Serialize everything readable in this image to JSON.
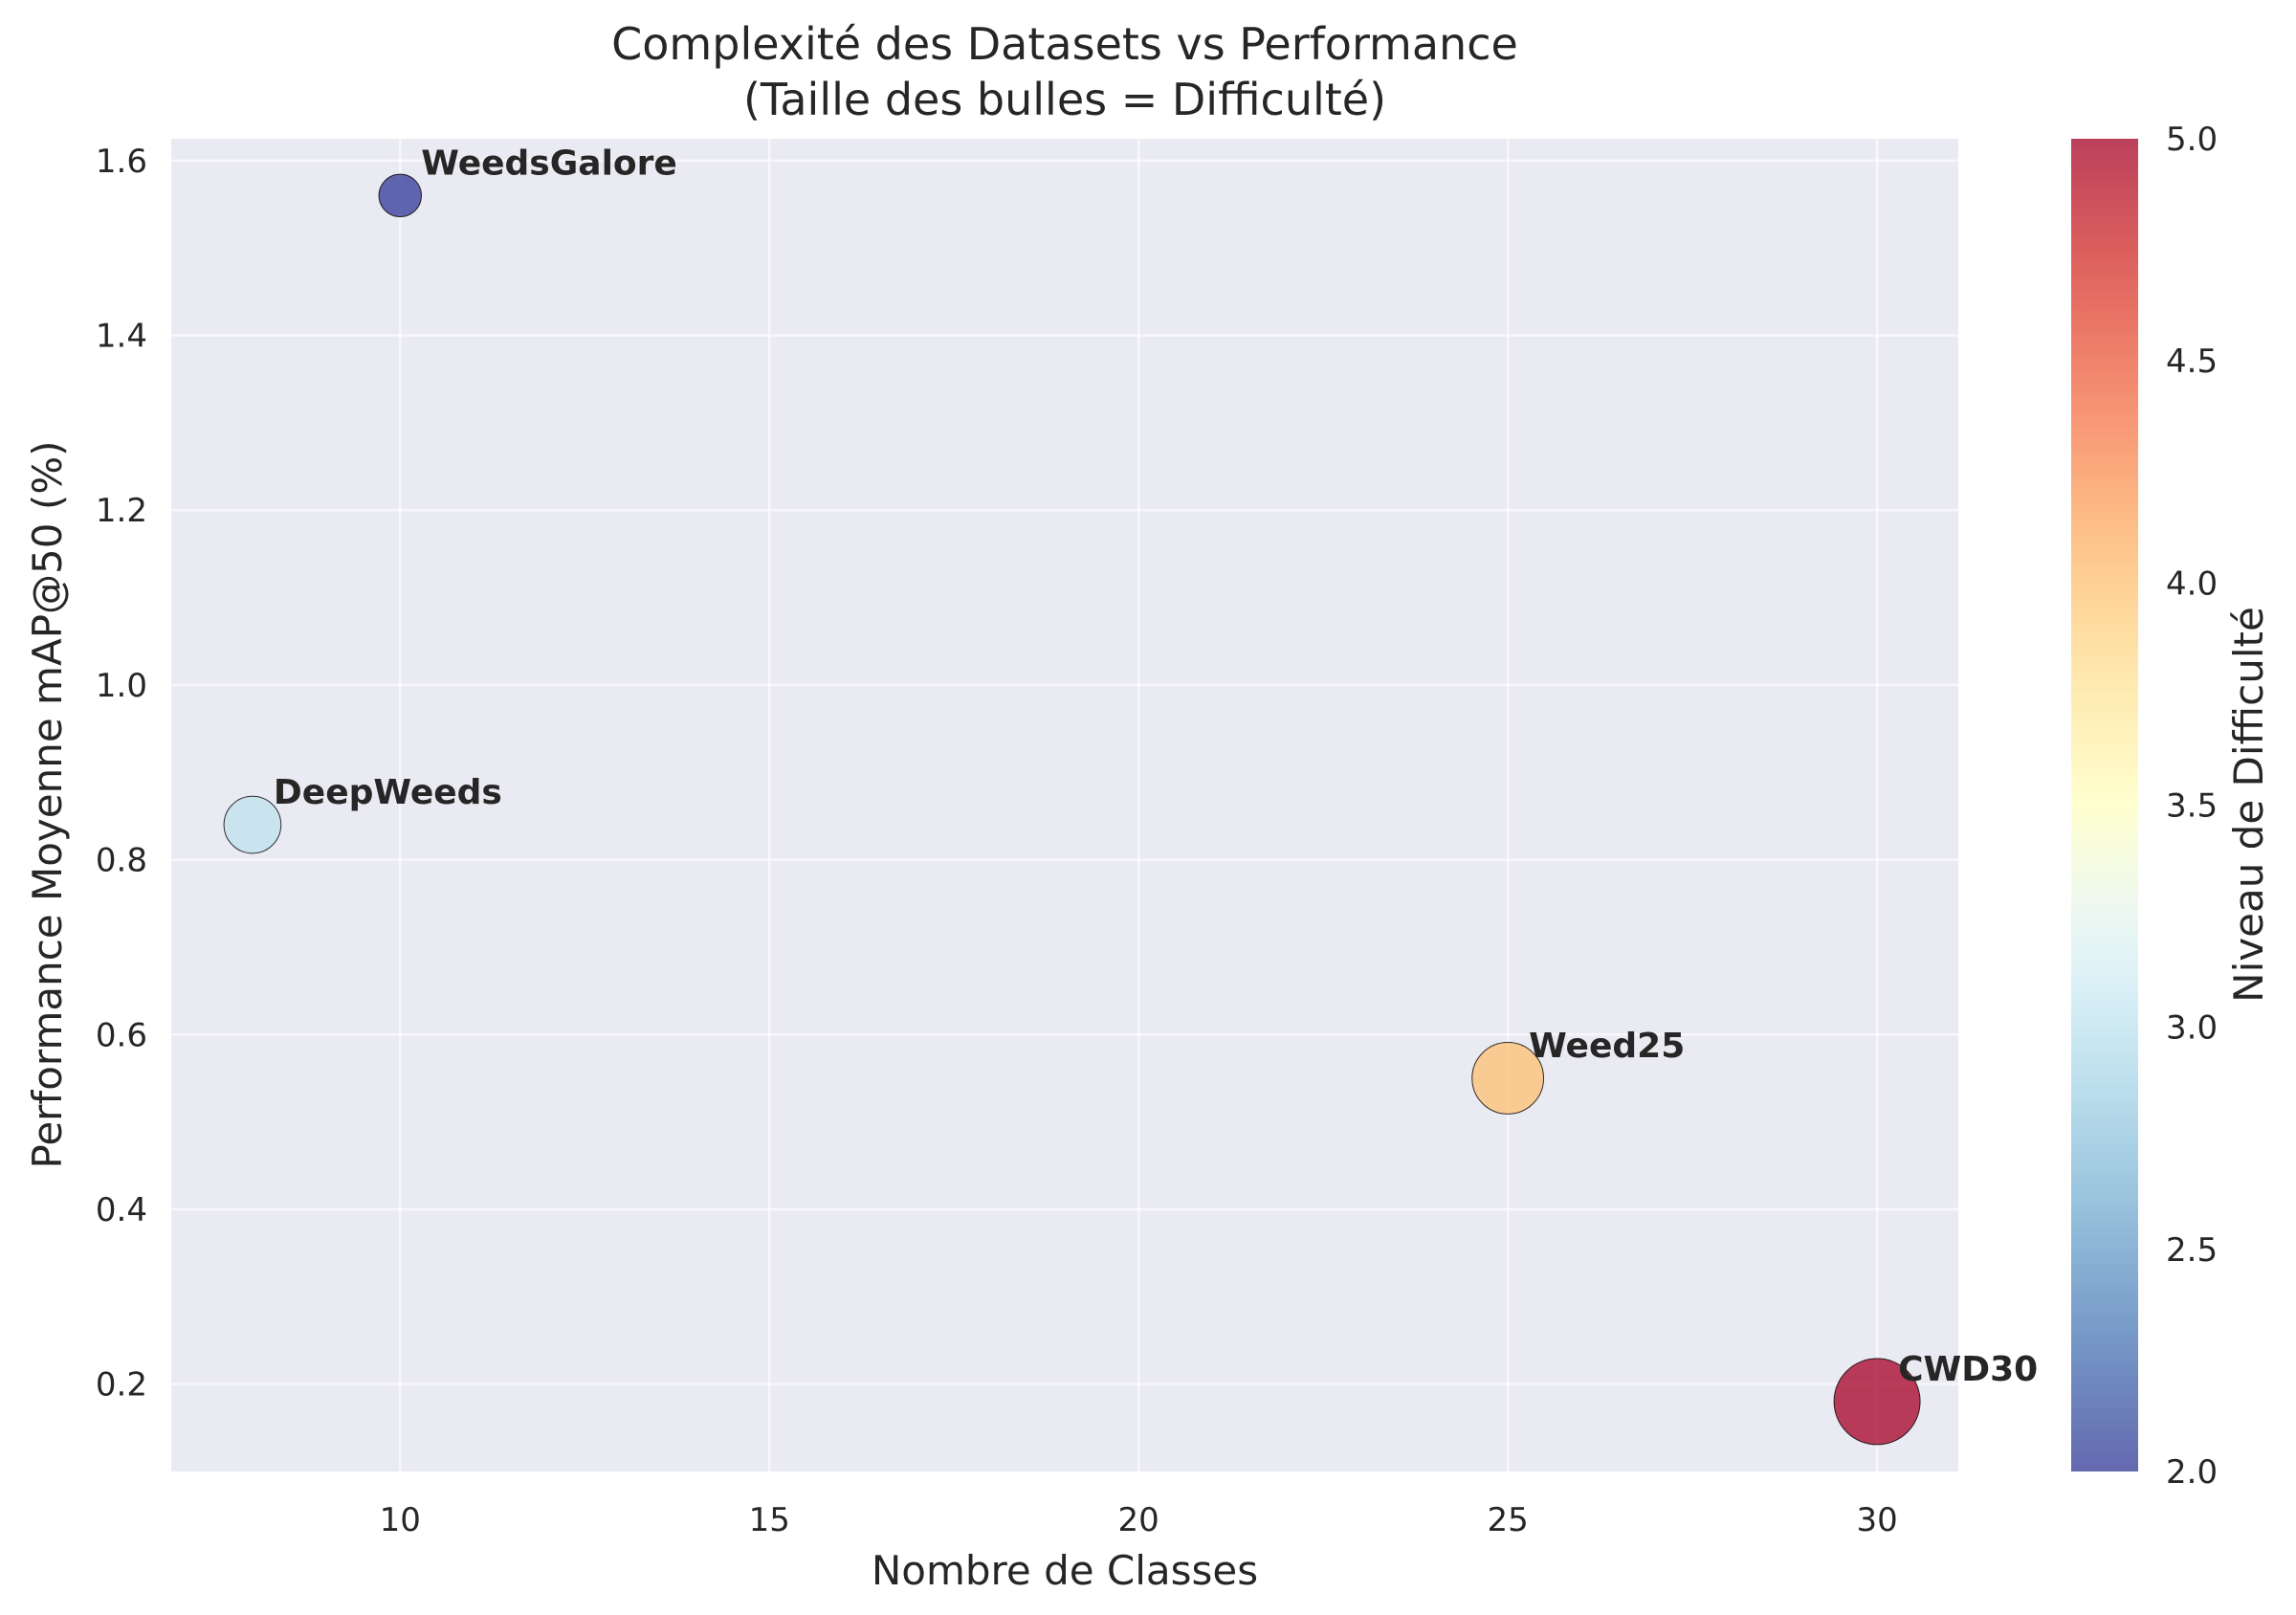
{
  "chart_data": {
    "type": "scatter",
    "title": "Complexité des Datasets vs Performance",
    "subtitle": "(Taille des bulles = Difficulté)",
    "xlabel": "Nombre de Classes",
    "ylabel": "Performance Moyenne mAP@50 (%)",
    "xlim": [
      6.9,
      31.1
    ],
    "ylim": [
      0.1,
      1.625
    ],
    "xticks": [
      10,
      15,
      20,
      25,
      30
    ],
    "yticks": [
      0.2,
      0.4,
      0.6,
      0.8,
      1.0,
      1.2,
      1.4,
      1.6
    ],
    "grid": true,
    "points": [
      {
        "label": "WeedsGalore",
        "x": 10,
        "y": 1.56,
        "difficulty": 2
      },
      {
        "label": "DeepWeeds",
        "x": 8,
        "y": 0.84,
        "difficulty": 3
      },
      {
        "label": "Weed25",
        "x": 25,
        "y": 0.55,
        "difficulty": 4
      },
      {
        "label": "CWD30",
        "x": 30,
        "y": 0.18,
        "difficulty": 5
      }
    ],
    "colorbar": {
      "label": "Niveau de Difficulté",
      "range": [
        2.0,
        5.0
      ],
      "ticks": [
        "2.0",
        "2.5",
        "3.0",
        "3.5",
        "4.0",
        "4.5",
        "5.0"
      ],
      "colormap": "RdYlBu_r",
      "colors": [
        "#313695",
        "#4575b4",
        "#74add1",
        "#abd9e9",
        "#e0f3f8",
        "#ffffbf",
        "#fee090",
        "#fdae61",
        "#f46d43",
        "#d73027",
        "#a50026"
      ]
    },
    "colors": {
      "background": "#eaeaf2",
      "grid": "#ffffff",
      "marker_edge": "#000000"
    }
  }
}
